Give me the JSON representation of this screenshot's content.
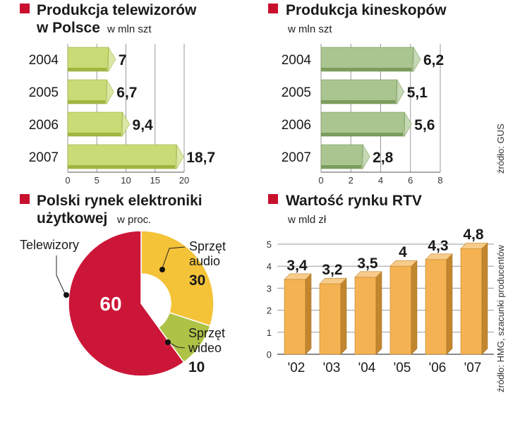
{
  "accent_color": "#c8102e",
  "charts": [
    {
      "title_lines": [
        "Produkcja telewizorów",
        "w Polsce"
      ],
      "unit": "w mln szt"
    },
    {
      "title_lines": [
        "Produkcja kineskopów"
      ],
      "unit": "w mln szt"
    },
    {
      "title_lines": [
        "Polski rynek elektroniki",
        "użytkowej"
      ],
      "unit": "w proc."
    },
    {
      "title_lines": [
        "Wartość rynku RTV"
      ],
      "unit": "w mld zł"
    }
  ],
  "sources": {
    "top": "źródło: GUS",
    "bottom": "źródło: HMG, szacunki producentów"
  },
  "chart_data": [
    {
      "type": "bar",
      "orientation": "horizontal",
      "title": "Produkcja telewizorów w Polsce",
      "unit": "w mln szt",
      "categories": [
        "2004",
        "2005",
        "2006",
        "2007"
      ],
      "values": [
        7,
        6.7,
        9.4,
        18.7
      ],
      "value_labels": [
        "7",
        "6,7",
        "9,4",
        "18,7"
      ],
      "xlim": [
        0,
        20
      ],
      "ticks": [
        0,
        5,
        10,
        15,
        20
      ],
      "grid": true,
      "color": "#b5cf4a"
    },
    {
      "type": "bar",
      "orientation": "horizontal",
      "title": "Produkcja kineskopów",
      "unit": "w mln szt",
      "categories": [
        "2004",
        "2005",
        "2006",
        "2007"
      ],
      "values": [
        6.2,
        5.1,
        5.6,
        2.8
      ],
      "value_labels": [
        "6,2",
        "5,1",
        "5,6",
        "2,8"
      ],
      "xlim": [
        0,
        8
      ],
      "ticks": [
        0,
        2,
        4,
        6,
        8
      ],
      "grid": true,
      "color": "#8db26a"
    },
    {
      "type": "pie",
      "title": "Polski rynek elektroniki użytkowej",
      "unit": "w proc.",
      "slices": [
        {
          "label": "Telewizory",
          "value": 60,
          "value_label": "60",
          "color": "#cc1638"
        },
        {
          "label": "Sprzęt audio",
          "label_lines": [
            "Sprzęt",
            "audio"
          ],
          "value": 30,
          "value_label": "30",
          "color": "#f4c338"
        },
        {
          "label": "Sprzęt wideo",
          "label_lines": [
            "Sprzęt",
            "wideo"
          ],
          "value": 10,
          "value_label": "10",
          "color": "#aec246"
        }
      ]
    },
    {
      "type": "bar",
      "orientation": "vertical",
      "title": "Wartość rynku RTV",
      "unit": "w mld zł",
      "categories": [
        "'02",
        "'03",
        "'04",
        "'05",
        "'06",
        "'07"
      ],
      "values": [
        3.4,
        3.2,
        3.5,
        4,
        4.3,
        4.8
      ],
      "value_labels": [
        "3,4",
        "3,2",
        "3,5",
        "4",
        "4,3",
        "4,8"
      ],
      "ylim": [
        0,
        5
      ],
      "ticks": [
        0,
        1,
        2,
        3,
        4,
        5
      ],
      "grid": true,
      "color": "#f2a83a"
    }
  ]
}
